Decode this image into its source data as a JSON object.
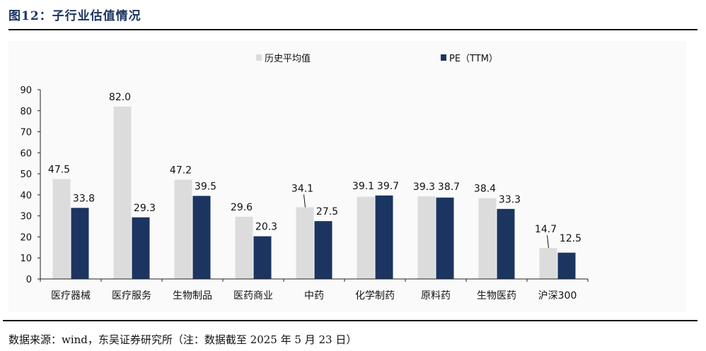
{
  "header": {
    "title": "图12：子行业估值情况"
  },
  "footer": {
    "source": "数据来源：wind，东吴证券研究所（注：数据截至 2025 年 5 月 23 日）"
  },
  "colors": {
    "historical": "#dcdcdc",
    "pe": "#1b3560"
  },
  "chart_data": {
    "type": "bar",
    "categories": [
      "医疗器械",
      "医疗服务",
      "生物制品",
      "医药商业",
      "中药",
      "化学制药",
      "原料药",
      "生物医药",
      "沪深300"
    ],
    "series": [
      {
        "name": "历史平均值",
        "values": [
          47.5,
          82.0,
          47.2,
          29.6,
          34.1,
          39.1,
          39.3,
          38.4,
          14.7
        ]
      },
      {
        "name": "PE（TTM）",
        "values": [
          33.8,
          29.3,
          39.5,
          20.3,
          27.5,
          39.7,
          38.7,
          33.3,
          12.5
        ]
      }
    ],
    "ylim": [
      0,
      90
    ],
    "yticks": [
      "0",
      "10",
      "20",
      "30",
      "40",
      "50",
      "60",
      "70",
      "80",
      "90"
    ],
    "legend_position": "top"
  }
}
